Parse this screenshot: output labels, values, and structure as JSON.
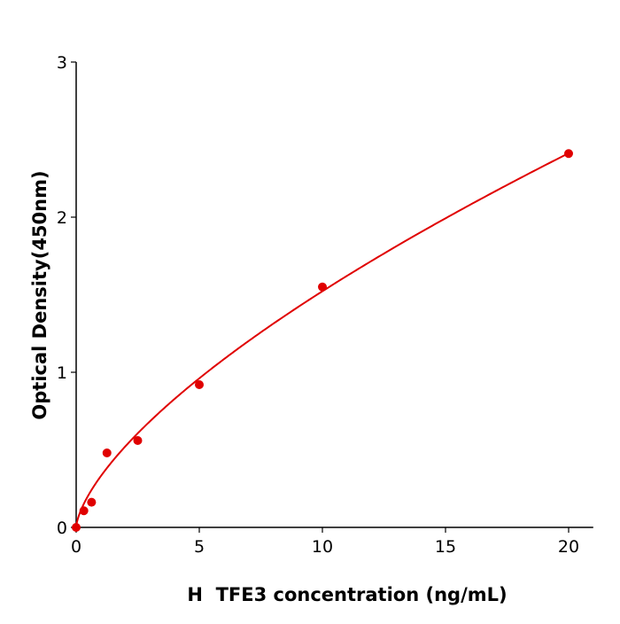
{
  "chart_data": {
    "type": "scatter",
    "title": "",
    "xlabel": "H  TFE3 concentration (ng/mL)",
    "ylabel": "Optical Density(450nm)",
    "xlim": [
      0,
      21
    ],
    "ylim": [
      0,
      3
    ],
    "xticks": [
      "0",
      "5",
      "10",
      "15",
      "20"
    ],
    "yticks": [
      "0",
      "1",
      "2",
      "3"
    ],
    "grid": false,
    "color": "#e00000",
    "series": [
      {
        "x": [
          0,
          0.3125,
          0.625,
          1.25,
          2.5,
          5,
          10,
          20
        ],
        "y": [
          0.0,
          0.107,
          0.162,
          0.48,
          0.56,
          0.92,
          1.55,
          2.41
        ]
      }
    ],
    "fit_curve": {
      "type": "power",
      "a": 0.33,
      "b": 0.664
    }
  }
}
